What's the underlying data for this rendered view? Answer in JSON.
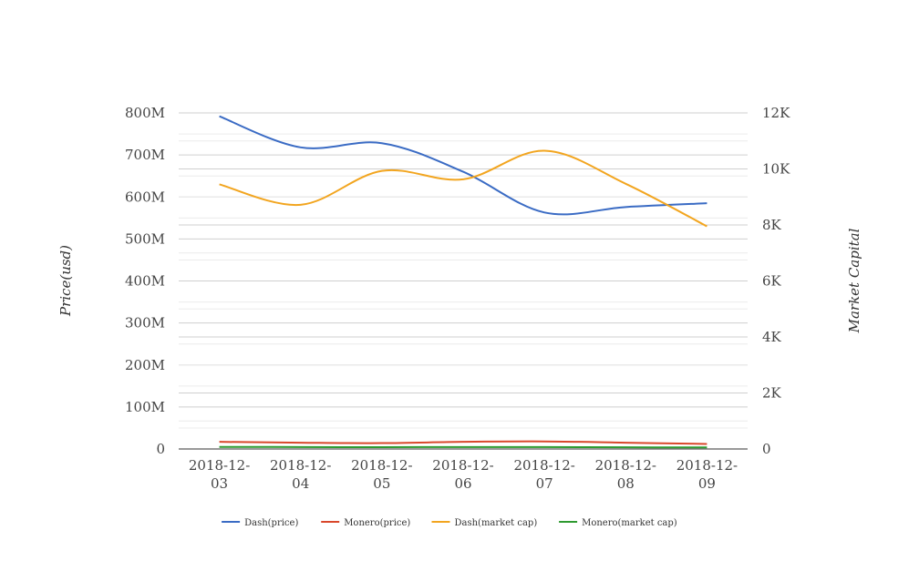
{
  "chart_data": {
    "type": "line",
    "categories": [
      "2018-12-03",
      "2018-12-04",
      "2018-12-05",
      "2018-12-06",
      "2018-12-07",
      "2018-12-08",
      "2018-12-09"
    ],
    "category_lines": [
      [
        "2018-12-",
        "03"
      ],
      [
        "2018-12-",
        "04"
      ],
      [
        "2018-12-",
        "05"
      ],
      [
        "2018-12-",
        "06"
      ],
      [
        "2018-12-",
        "07"
      ],
      [
        "2018-12-",
        "08"
      ],
      [
        "2018-12-",
        "09"
      ]
    ],
    "y_left": {
      "label": "Price(usd)",
      "range": [
        0,
        800000000
      ],
      "ticks": [
        0,
        100000000,
        200000000,
        300000000,
        400000000,
        500000000,
        600000000,
        700000000,
        800000000
      ],
      "tick_labels": [
        "0",
        "100M",
        "200M",
        "300M",
        "400M",
        "500M",
        "600M",
        "700M",
        "800M"
      ]
    },
    "y_right": {
      "label": "Market Capital",
      "range": [
        0,
        12000
      ],
      "ticks": [
        0,
        2000,
        4000,
        6000,
        8000,
        10000,
        12000
      ],
      "tick_labels": [
        "0",
        "2K",
        "4K",
        "6K",
        "8K",
        "10K",
        "12K"
      ]
    },
    "grid": true,
    "legend_position": "bottom",
    "series": [
      {
        "name": "Dash(price)",
        "axis": "left",
        "color": "#3a6bc4",
        "values": [
          792000000,
          718000000,
          728000000,
          660000000,
          563000000,
          576000000,
          585000000
        ]
      },
      {
        "name": "Monero(price)",
        "axis": "left",
        "color": "#d9472b",
        "values": [
          17000000,
          15000000,
          14000000,
          17000000,
          18000000,
          15000000,
          12000000
        ]
      },
      {
        "name": "Dash(market cap)",
        "axis": "right",
        "color": "#f2a51f",
        "values": [
          9450,
          8720,
          9930,
          9630,
          10650,
          9470,
          7950
        ]
      },
      {
        "name": "Monero(market cap)",
        "axis": "right",
        "color": "#2e9a30",
        "values": [
          75,
          70,
          65,
          70,
          70,
          60,
          55
        ]
      }
    ]
  }
}
